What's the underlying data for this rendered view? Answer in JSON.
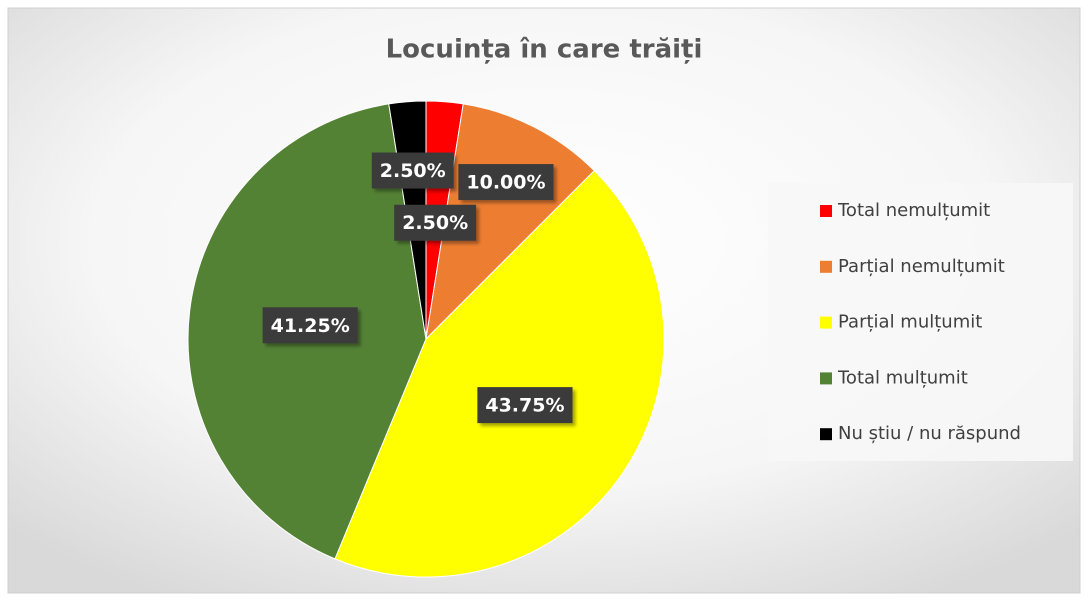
{
  "chart_data": {
    "type": "pie",
    "title": "Locuința în care trăiți",
    "categories": [
      "Total nemulțumit",
      "Parțial nemulțumit",
      "Parțial mulțumit",
      "Total mulțumit",
      "Nu știu / nu răspund"
    ],
    "values": [
      2.5,
      10,
      43.75,
      41.25,
      2.5
    ],
    "value_labels": [
      "2.50%",
      "10.00%",
      "43.75%",
      "41.25%",
      "2.50%"
    ],
    "colors": [
      "#ff0000",
      "#ed7d31",
      "#ffff00",
      "#548235",
      "#000000"
    ],
    "legend": "right"
  }
}
